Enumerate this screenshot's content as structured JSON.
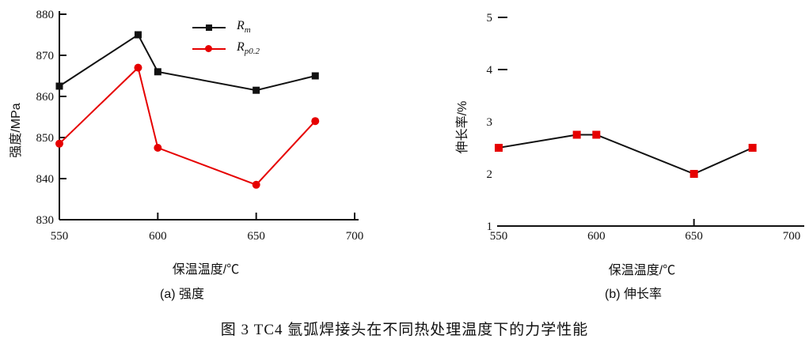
{
  "figure_caption": "图 3  TC4 氩弧焊接头在不同热处理温度下的力学性能",
  "colors": {
    "black": "#111111",
    "red": "#e60000",
    "background": "#ffffff"
  },
  "chart_data": [
    {
      "type": "line",
      "panel_label": "(a) 强度",
      "xlabel": "保温温度/℃",
      "ylabel": "强度/MPa",
      "x": [
        550,
        590,
        600,
        650,
        680
      ],
      "xlim": [
        550,
        700
      ],
      "xticks": [
        550,
        600,
        650,
        700
      ],
      "ylim": [
        830,
        880
      ],
      "yticks": [
        830,
        840,
        850,
        860,
        870,
        880
      ],
      "grid": false,
      "legend_position": "top-center-inside",
      "series": [
        {
          "name": "Rm",
          "legend_main": "R",
          "legend_sub": "m",
          "line_color": "#111111",
          "marker": "square",
          "marker_color": "#111111",
          "values": [
            862.5,
            875,
            866,
            861.5,
            865
          ]
        },
        {
          "name": "Rp0.2",
          "legend_main": "R",
          "legend_sub": "p0.2",
          "line_color": "#e60000",
          "marker": "circle",
          "marker_color": "#e60000",
          "values": [
            848.5,
            867,
            847.5,
            838.5,
            854
          ]
        }
      ]
    },
    {
      "type": "line",
      "panel_label": "(b) 伸长率",
      "xlabel": "保温温度/℃",
      "ylabel": "伸长率/%",
      "x": [
        550,
        590,
        600,
        650,
        680
      ],
      "xlim": [
        550,
        700
      ],
      "xticks": [
        550,
        600,
        650,
        700
      ],
      "ylim": [
        1,
        5
      ],
      "yticks": [
        1,
        2,
        3,
        4,
        5
      ],
      "ytick_dash_marks": [
        4,
        5
      ],
      "grid": false,
      "series": [
        {
          "name": "伸长率",
          "line_color": "#111111",
          "marker": "square",
          "marker_color": "#e60000",
          "values": [
            2.5,
            2.75,
            2.75,
            2.0,
            2.5
          ]
        }
      ]
    }
  ]
}
